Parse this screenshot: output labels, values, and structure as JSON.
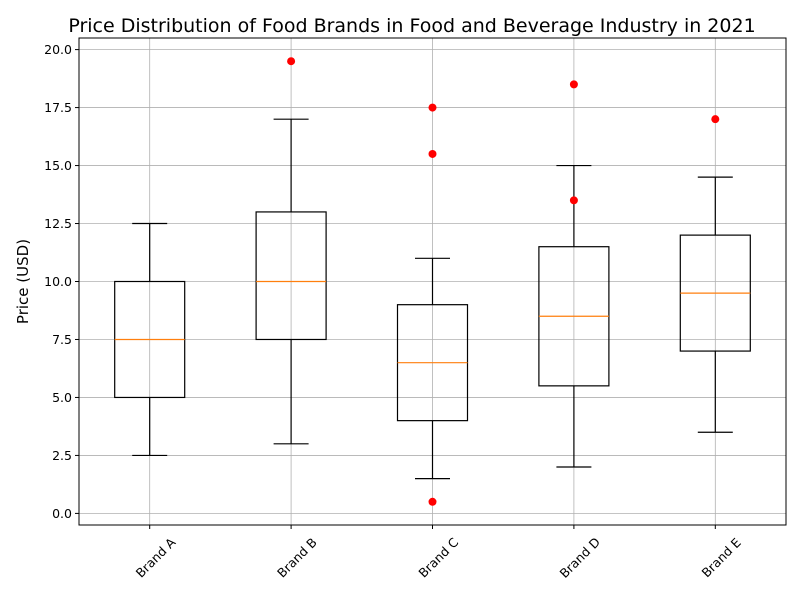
{
  "chart_data": {
    "type": "box",
    "title": "Price Distribution of Food Brands in Food and Beverage Industry in 2021",
    "xlabel": "",
    "ylabel": "Price (USD)",
    "ylim": [
      -0.5,
      20.5
    ],
    "yticks": [
      "0.0",
      "2.5",
      "5.0",
      "7.5",
      "10.0",
      "12.5",
      "15.0",
      "17.5",
      "20.0"
    ],
    "grid": true,
    "categories": [
      "Brand A",
      "Brand B",
      "Brand C",
      "Brand D",
      "Brand E"
    ],
    "boxes": [
      {
        "category": "Brand A",
        "whisker_low": 2.5,
        "q1": 5.0,
        "median": 7.5,
        "q3": 10.0,
        "whisker_high": 12.5,
        "outliers": []
      },
      {
        "category": "Brand B",
        "whisker_low": 3.0,
        "q1": 7.5,
        "median": 10.0,
        "q3": 13.0,
        "whisker_high": 17.0,
        "outliers": [
          19.5
        ]
      },
      {
        "category": "Brand C",
        "whisker_low": 1.5,
        "q1": 4.0,
        "median": 6.5,
        "q3": 9.0,
        "whisker_high": 11.0,
        "outliers": [
          17.5,
          15.5,
          0.5
        ]
      },
      {
        "category": "Brand D",
        "whisker_low": 2.0,
        "q1": 5.5,
        "median": 8.5,
        "q3": 11.5,
        "whisker_high": 15.0,
        "outliers": [
          18.5,
          13.5
        ]
      },
      {
        "category": "Brand E",
        "whisker_low": 3.5,
        "q1": 7.0,
        "median": 9.5,
        "q3": 12.0,
        "whisker_high": 14.5,
        "outliers": [
          17.0
        ]
      }
    ],
    "colors": {
      "box": "#000000",
      "median": "#ff7f0e",
      "outlier": "#ff0000",
      "grid": "#b0b0b0"
    }
  }
}
